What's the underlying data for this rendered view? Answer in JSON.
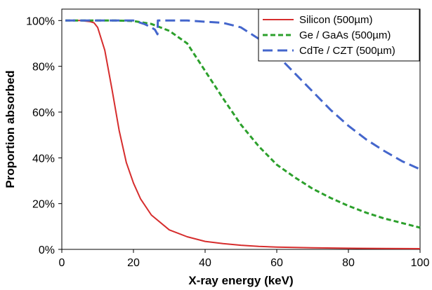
{
  "chart_data": {
    "type": "line",
    "title": "",
    "xlabel": "X-ray energy (keV)",
    "ylabel": "Proportion absorbed",
    "xlim": [
      0,
      100
    ],
    "ylim": [
      0,
      1.05
    ],
    "x_ticks": [
      0,
      20,
      40,
      60,
      80,
      100
    ],
    "y_ticks": [
      0,
      0.2,
      0.4,
      0.6,
      0.8,
      1.0
    ],
    "x_tick_labels": [
      "0",
      "20",
      "40",
      "60",
      "80",
      "100"
    ],
    "y_tick_labels": [
      "0%",
      "20%",
      "40%",
      "60%",
      "80%",
      "100%"
    ],
    "grid": false,
    "legend_position": "top-right",
    "series": [
      {
        "name": "Silicon (500µm)",
        "color": "#d62d2d",
        "style": "solid",
        "x": [
          1,
          5,
          8,
          9,
          10,
          12,
          14,
          16,
          18,
          20,
          22,
          25,
          30,
          35,
          40,
          45,
          50,
          55,
          60,
          70,
          80,
          90,
          100
        ],
        "y": [
          1.0,
          1.0,
          0.995,
          0.99,
          0.97,
          0.87,
          0.7,
          0.52,
          0.38,
          0.29,
          0.22,
          0.15,
          0.085,
          0.055,
          0.035,
          0.025,
          0.018,
          0.013,
          0.01,
          0.007,
          0.005,
          0.004,
          0.003
        ]
      },
      {
        "name": "Ge / GaAs (500µm)",
        "color": "#2ca02c",
        "style": "dashed",
        "x": [
          1,
          10,
          15,
          20,
          25,
          30,
          35,
          40,
          45,
          50,
          55,
          60,
          65,
          70,
          75,
          80,
          85,
          90,
          95,
          100
        ],
        "y": [
          1.0,
          1.0,
          1.0,
          0.998,
          0.985,
          0.955,
          0.9,
          0.78,
          0.66,
          0.545,
          0.45,
          0.37,
          0.315,
          0.265,
          0.225,
          0.19,
          0.16,
          0.135,
          0.115,
          0.095
        ]
      },
      {
        "name": "CdTe / CZT (500µm)",
        "color": "#4466cc",
        "style": "dashed",
        "x": [
          1,
          10,
          20,
          23,
          25,
          26,
          26.7,
          26.8,
          27,
          30,
          35,
          40,
          45,
          50,
          55,
          60,
          65,
          70,
          75,
          80,
          85,
          90,
          95,
          100
        ],
        "y": [
          1.0,
          1.0,
          1.0,
          0.985,
          0.97,
          0.96,
          0.94,
          1.0,
          1.0,
          1.0,
          1.0,
          0.995,
          0.99,
          0.97,
          0.92,
          0.85,
          0.77,
          0.69,
          0.61,
          0.54,
          0.48,
          0.43,
          0.385,
          0.35
        ]
      }
    ]
  }
}
